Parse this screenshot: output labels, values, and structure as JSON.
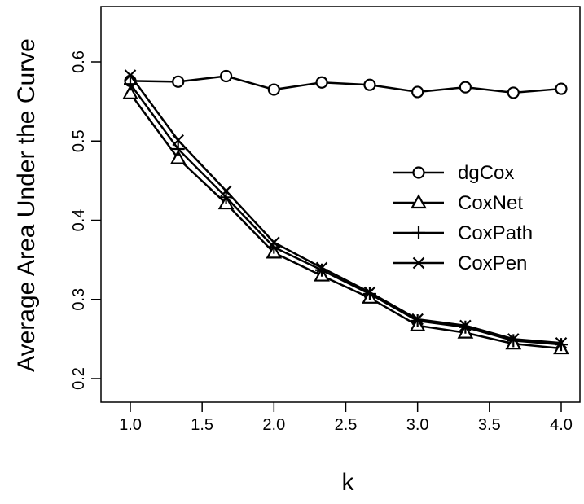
{
  "chart_data": {
    "type": "line",
    "title": "",
    "xlabel": "k",
    "ylabel": "Average Area Under the Curve",
    "xlim": [
      1.0,
      4.0
    ],
    "ylim": [
      0.2,
      0.6
    ],
    "x_ticks": [
      "1.0",
      "1.5",
      "2.0",
      "2.5",
      "3.0",
      "3.5",
      "4.0"
    ],
    "y_ticks": [
      "0.2",
      "0.3",
      "0.4",
      "0.5",
      "0.6"
    ],
    "grid": false,
    "legend_position": "right",
    "x": [
      1.0,
      1.333,
      1.667,
      2.0,
      2.333,
      2.667,
      3.0,
      3.333,
      3.667,
      4.0
    ],
    "series": [
      {
        "name": "dgCox",
        "marker": "circle",
        "color": "#000000",
        "values": [
          0.576,
          0.575,
          0.582,
          0.565,
          0.574,
          0.571,
          0.562,
          0.568,
          0.561,
          0.566
        ]
      },
      {
        "name": "CoxNet",
        "marker": "triangle",
        "color": "#000000",
        "values": [
          0.56,
          0.478,
          0.421,
          0.359,
          0.33,
          0.302,
          0.267,
          0.258,
          0.244,
          0.238
        ]
      },
      {
        "name": "CoxPath",
        "marker": "plus",
        "color": "#000000",
        "values": [
          0.572,
          0.49,
          0.429,
          0.366,
          0.337,
          0.307,
          0.273,
          0.265,
          0.248,
          0.243
        ]
      },
      {
        "name": "CoxPen",
        "marker": "cross",
        "color": "#000000",
        "values": [
          0.583,
          0.501,
          0.437,
          0.372,
          0.34,
          0.309,
          0.275,
          0.267,
          0.25,
          0.245
        ]
      }
    ]
  }
}
